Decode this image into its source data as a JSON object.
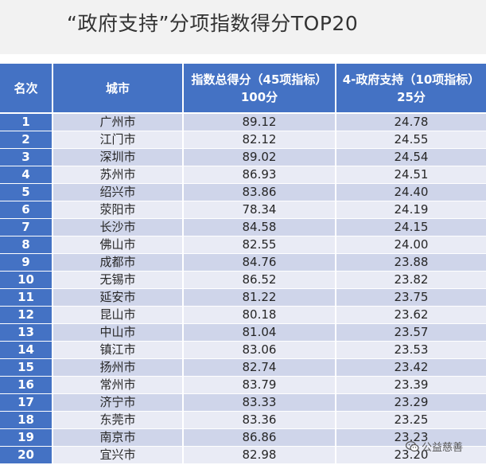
{
  "title": "“政府支持”分项指数得分TOP20",
  "table": {
    "headers": [
      "名次",
      "城市",
      "指数总得分（45项指标）100分",
      "4-政府支持（10项指标）25分"
    ],
    "rows": [
      {
        "rank": "1",
        "city": "广州市",
        "total": "89.12",
        "gov": "24.78"
      },
      {
        "rank": "2",
        "city": "江门市",
        "total": "82.12",
        "gov": "24.55"
      },
      {
        "rank": "3",
        "city": "深圳市",
        "total": "89.02",
        "gov": "24.54"
      },
      {
        "rank": "4",
        "city": "苏州市",
        "total": "86.93",
        "gov": "24.51"
      },
      {
        "rank": "5",
        "city": "绍兴市",
        "total": "83.86",
        "gov": "24.40"
      },
      {
        "rank": "6",
        "city": "荥阳市",
        "total": "78.34",
        "gov": "24.19"
      },
      {
        "rank": "7",
        "city": "长沙市",
        "total": "84.58",
        "gov": "24.15"
      },
      {
        "rank": "8",
        "city": "佛山市",
        "total": "82.55",
        "gov": "24.00"
      },
      {
        "rank": "9",
        "city": "成都市",
        "total": "84.76",
        "gov": "23.88"
      },
      {
        "rank": "10",
        "city": "无锡市",
        "total": "86.52",
        "gov": "23.82"
      },
      {
        "rank": "11",
        "city": "延安市",
        "total": "81.22",
        "gov": "23.75"
      },
      {
        "rank": "12",
        "city": "昆山市",
        "total": "80.18",
        "gov": "23.62"
      },
      {
        "rank": "13",
        "city": "中山市",
        "total": "81.04",
        "gov": "23.57"
      },
      {
        "rank": "14",
        "city": "镇江市",
        "total": "83.06",
        "gov": "23.53"
      },
      {
        "rank": "15",
        "city": "扬州市",
        "total": "82.74",
        "gov": "23.42"
      },
      {
        "rank": "16",
        "city": "常州市",
        "total": "83.79",
        "gov": "23.39"
      },
      {
        "rank": "17",
        "city": "济宁市",
        "total": "83.33",
        "gov": "23.29"
      },
      {
        "rank": "18",
        "city": "东莞市",
        "total": "83.36",
        "gov": "23.25"
      },
      {
        "rank": "19",
        "city": "南京市",
        "total": "86.86",
        "gov": "23.23"
      },
      {
        "rank": "20",
        "city": "宜兴市",
        "total": "82.98",
        "gov": "23.20"
      }
    ]
  },
  "watermark": {
    "text": "公益慈善",
    "icon": "wechat-icon"
  },
  "colors": {
    "header": "#4472c4",
    "row_odd": "#cfd5ea",
    "row_even": "#e9ebf5",
    "title_bg": "#f2f2f2"
  }
}
